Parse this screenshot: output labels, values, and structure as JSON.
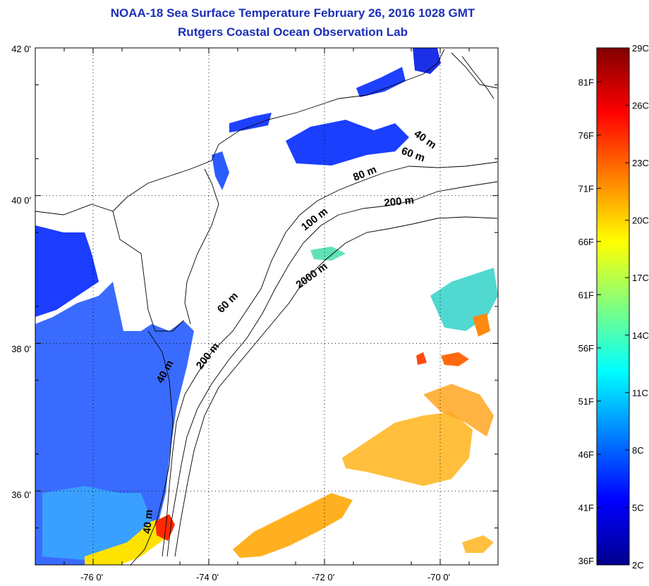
{
  "title": {
    "line1": "NOAA-18 Sea Surface Temperature February 26, 2016 1028 GMT",
    "line2": "Rutgers Coastal Ocean Observation Lab"
  },
  "map": {
    "lat_range": [
      35.0,
      42.0
    ],
    "lon_range": [
      -77.0,
      -69.0
    ],
    "lat_ticks": [
      {
        "value": 42,
        "label": "42 0'"
      },
      {
        "value": 40,
        "label": "40 0'"
      },
      {
        "value": 38,
        "label": "38 0'"
      },
      {
        "value": 36,
        "label": "36 0'"
      }
    ],
    "lon_ticks": [
      {
        "value": -76,
        "label": "-76 0'"
      },
      {
        "value": -74,
        "label": "-74 0'"
      },
      {
        "value": -72,
        "label": "-72 0'"
      },
      {
        "value": -70,
        "label": "-70 0'"
      }
    ],
    "grid": "dotted",
    "contour_labels": [
      "40 m",
      "60 m",
      "80 m",
      "200 m",
      "100 m",
      "2000 m",
      "60 m",
      "200 m",
      "40 m",
      "40 m"
    ]
  },
  "colorbar": {
    "range_c": [
      2,
      29
    ],
    "celsius_labels": [
      "29C",
      "26C",
      "23C",
      "20C",
      "17C",
      "14C",
      "11C",
      "8C",
      "5C",
      "2C"
    ],
    "fahrenheit_labels": [
      "81F",
      "76F",
      "71F",
      "66F",
      "61F",
      "56F",
      "51F",
      "46F",
      "41F",
      "36F"
    ],
    "colormap": "jet",
    "colors": [
      "#00008f",
      "#0000ff",
      "#0080ff",
      "#00ffff",
      "#80ff80",
      "#ffff00",
      "#ff8000",
      "#ff0000",
      "#800000"
    ]
  }
}
